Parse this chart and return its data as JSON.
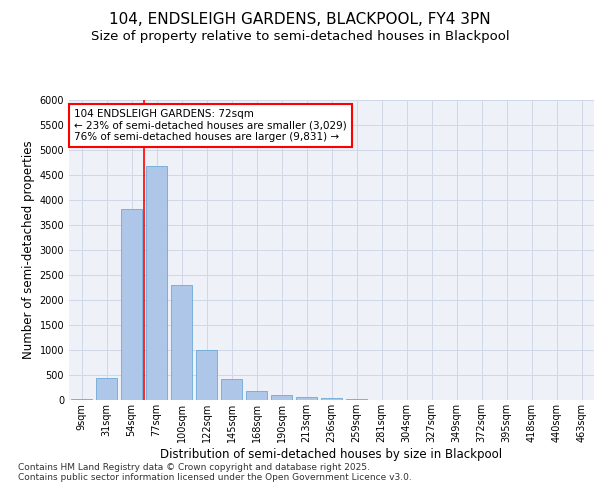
{
  "title_line1": "104, ENDSLEIGH GARDENS, BLACKPOOL, FY4 3PN",
  "title_line2": "Size of property relative to semi-detached houses in Blackpool",
  "xlabel": "Distribution of semi-detached houses by size in Blackpool",
  "ylabel": "Number of semi-detached properties",
  "categories": [
    "9sqm",
    "31sqm",
    "54sqm",
    "77sqm",
    "100sqm",
    "122sqm",
    "145sqm",
    "168sqm",
    "190sqm",
    "213sqm",
    "236sqm",
    "259sqm",
    "281sqm",
    "304sqm",
    "327sqm",
    "349sqm",
    "372sqm",
    "395sqm",
    "418sqm",
    "440sqm",
    "463sqm"
  ],
  "values": [
    30,
    450,
    3820,
    4680,
    2300,
    1000,
    420,
    190,
    100,
    70,
    50,
    30,
    5,
    2,
    1,
    1,
    0,
    0,
    0,
    0,
    0
  ],
  "bar_color": "#aec6e8",
  "bar_edge_color": "#5a9fd4",
  "vline_x_idx": 2.5,
  "vline_color": "red",
  "annotation_text": "104 ENDSLEIGH GARDENS: 72sqm\n← 23% of semi-detached houses are smaller (3,029)\n76% of semi-detached houses are larger (9,831) →",
  "annotation_box_edgecolor": "red",
  "annotation_text_color": "black",
  "annotation_bg_color": "white",
  "ylim": [
    0,
    6000
  ],
  "yticks": [
    0,
    500,
    1000,
    1500,
    2000,
    2500,
    3000,
    3500,
    4000,
    4500,
    5000,
    5500,
    6000
  ],
  "grid_color": "#d0d8e8",
  "background_color": "#eef2f8",
  "footer_text": "Contains HM Land Registry data © Crown copyright and database right 2025.\nContains public sector information licensed under the Open Government Licence v3.0.",
  "title_fontsize": 11,
  "subtitle_fontsize": 9.5,
  "axis_label_fontsize": 8.5,
  "tick_fontsize": 7,
  "footer_fontsize": 6.5,
  "annotation_fontsize": 7.5
}
